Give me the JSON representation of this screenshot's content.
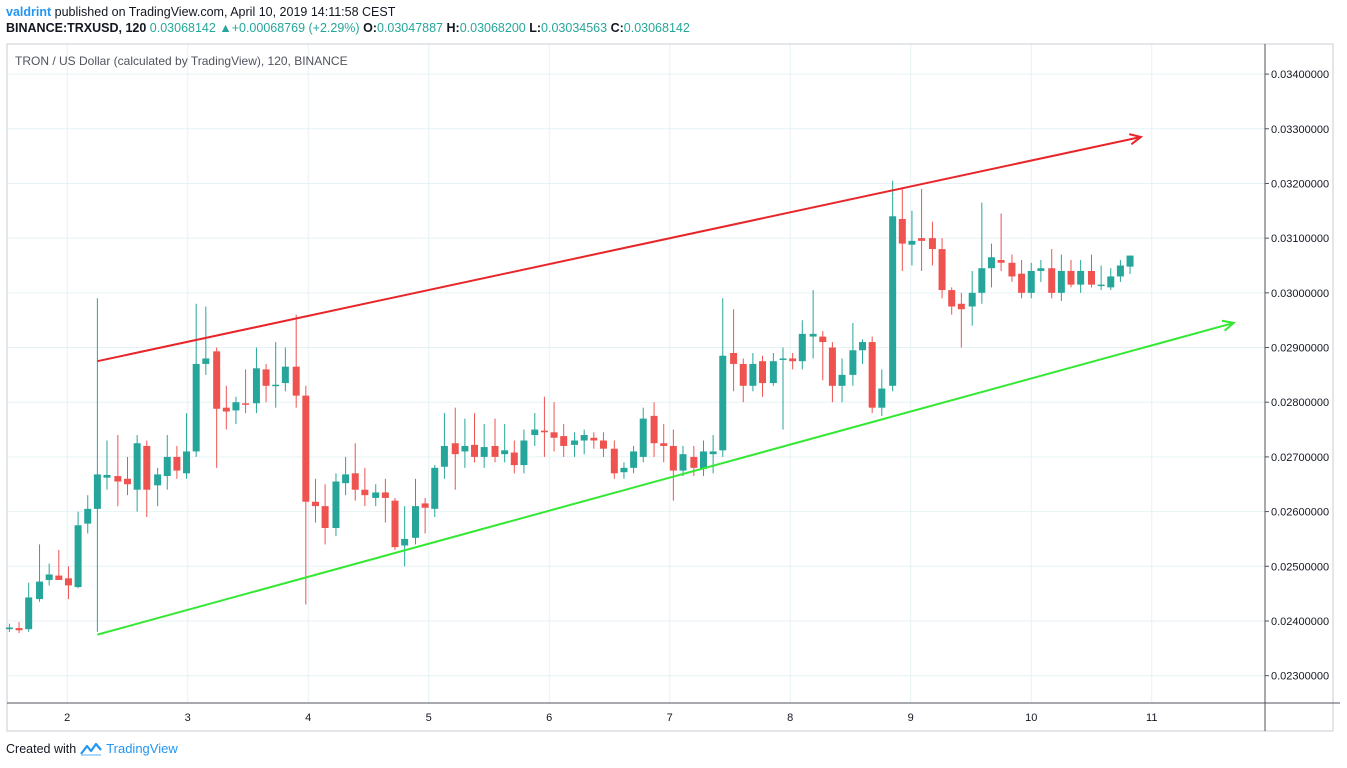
{
  "header": {
    "user": "valdrint",
    "published_text": "published on TradingView.com, April 10, 2019 14:11:58 CEST",
    "symbol": "BINANCE:TRXUSD, 120",
    "last": "0.03068142",
    "change_arrow": "▲",
    "change": "+0.00068769 (+2.29%)",
    "o_label": "O:",
    "o": "0.03047887",
    "h_label": "H:",
    "h": "0.03068200",
    "l_label": "L:",
    "l": "0.03034563",
    "c_label": "C:",
    "c": "0.03068142"
  },
  "footer": {
    "created_with": "Created with",
    "brand": "TradingView"
  },
  "colors": {
    "up": "#26a69a",
    "down": "#ef5350",
    "resistance": "#e8262a",
    "support": "#33e833",
    "grid": "#e6f2f5",
    "axis": "#50535e"
  },
  "chart_data": {
    "type": "candlestick",
    "title": "TRON / US Dollar (calculated by TradingView), 120, BINANCE",
    "x_ticks": [
      "2",
      "3",
      "4",
      "5",
      "6",
      "7",
      "8",
      "9",
      "10",
      "11"
    ],
    "y_ticks": [
      "0.03400000",
      "0.03300000",
      "0.03200000",
      "0.03100000",
      "0.03000000",
      "0.02900000",
      "0.02800000",
      "0.02700000",
      "0.02600000",
      "0.02500000",
      "0.02400000",
      "0.02300000"
    ],
    "xlim": [
      1.5,
      11.94
    ],
    "ylim": [
      0.0225,
      0.03455
    ],
    "grid": true,
    "candles": [
      {
        "t": 1.52,
        "o": 0.02385,
        "h": 0.02395,
        "l": 0.0238,
        "c": 0.02388
      },
      {
        "t": 1.6,
        "o": 0.02387,
        "h": 0.02398,
        "l": 0.02378,
        "c": 0.02383
      },
      {
        "t": 1.68,
        "o": 0.02385,
        "h": 0.0247,
        "l": 0.0238,
        "c": 0.02443
      },
      {
        "t": 1.77,
        "o": 0.0244,
        "h": 0.0254,
        "l": 0.02435,
        "c": 0.02472
      },
      {
        "t": 1.85,
        "o": 0.02475,
        "h": 0.02505,
        "l": 0.02465,
        "c": 0.02485
      },
      {
        "t": 1.93,
        "o": 0.02483,
        "h": 0.0253,
        "l": 0.02475,
        "c": 0.02475
      },
      {
        "t": 2.01,
        "o": 0.02478,
        "h": 0.025,
        "l": 0.0244,
        "c": 0.02465
      },
      {
        "t": 2.09,
        "o": 0.02462,
        "h": 0.026,
        "l": 0.0246,
        "c": 0.02575
      },
      {
        "t": 2.17,
        "o": 0.02578,
        "h": 0.0263,
        "l": 0.0256,
        "c": 0.02605
      },
      {
        "t": 2.25,
        "o": 0.02605,
        "h": 0.0299,
        "l": 0.0238,
        "c": 0.02668
      },
      {
        "t": 2.33,
        "o": 0.02662,
        "h": 0.0273,
        "l": 0.0264,
        "c": 0.02667
      },
      {
        "t": 2.42,
        "o": 0.02665,
        "h": 0.0274,
        "l": 0.0261,
        "c": 0.02655
      },
      {
        "t": 2.5,
        "o": 0.0266,
        "h": 0.027,
        "l": 0.0263,
        "c": 0.0265
      },
      {
        "t": 2.58,
        "o": 0.0264,
        "h": 0.0274,
        "l": 0.026,
        "c": 0.02725
      },
      {
        "t": 2.66,
        "o": 0.0272,
        "h": 0.0273,
        "l": 0.0259,
        "c": 0.0264
      },
      {
        "t": 2.75,
        "o": 0.02648,
        "h": 0.0268,
        "l": 0.0261,
        "c": 0.02668
      },
      {
        "t": 2.83,
        "o": 0.02665,
        "h": 0.0274,
        "l": 0.0264,
        "c": 0.027
      },
      {
        "t": 2.91,
        "o": 0.027,
        "h": 0.0272,
        "l": 0.0266,
        "c": 0.02675
      },
      {
        "t": 2.99,
        "o": 0.0267,
        "h": 0.0278,
        "l": 0.0266,
        "c": 0.0271
      },
      {
        "t": 3.07,
        "o": 0.0271,
        "h": 0.0298,
        "l": 0.027,
        "c": 0.0287
      },
      {
        "t": 3.15,
        "o": 0.0287,
        "h": 0.02975,
        "l": 0.0285,
        "c": 0.0288
      },
      {
        "t": 3.24,
        "o": 0.02893,
        "h": 0.029,
        "l": 0.0268,
        "c": 0.02788
      },
      {
        "t": 3.32,
        "o": 0.0279,
        "h": 0.0283,
        "l": 0.0275,
        "c": 0.02783
      },
      {
        "t": 3.4,
        "o": 0.02785,
        "h": 0.0281,
        "l": 0.0276,
        "c": 0.028
      },
      {
        "t": 3.48,
        "o": 0.02798,
        "h": 0.0286,
        "l": 0.0278,
        "c": 0.02797
      },
      {
        "t": 3.57,
        "o": 0.02798,
        "h": 0.029,
        "l": 0.0278,
        "c": 0.02862
      },
      {
        "t": 3.65,
        "o": 0.0286,
        "h": 0.0287,
        "l": 0.028,
        "c": 0.0283
      },
      {
        "t": 3.73,
        "o": 0.0283,
        "h": 0.0291,
        "l": 0.0279,
        "c": 0.02832
      },
      {
        "t": 3.81,
        "o": 0.02835,
        "h": 0.029,
        "l": 0.0282,
        "c": 0.02865
      },
      {
        "t": 3.9,
        "o": 0.02865,
        "h": 0.0296,
        "l": 0.0279,
        "c": 0.02812
      },
      {
        "t": 3.98,
        "o": 0.02812,
        "h": 0.0283,
        "l": 0.0243,
        "c": 0.02618
      },
      {
        "t": 4.06,
        "o": 0.02618,
        "h": 0.0266,
        "l": 0.0258,
        "c": 0.0261
      },
      {
        "t": 4.14,
        "o": 0.0261,
        "h": 0.0265,
        "l": 0.0254,
        "c": 0.0257
      },
      {
        "t": 4.23,
        "o": 0.0257,
        "h": 0.0267,
        "l": 0.02555,
        "c": 0.02655
      },
      {
        "t": 4.31,
        "o": 0.02652,
        "h": 0.027,
        "l": 0.0263,
        "c": 0.02668
      },
      {
        "t": 4.39,
        "o": 0.0267,
        "h": 0.02725,
        "l": 0.0262,
        "c": 0.0264
      },
      {
        "t": 4.47,
        "o": 0.0264,
        "h": 0.0268,
        "l": 0.0261,
        "c": 0.0263
      },
      {
        "t": 4.56,
        "o": 0.02625,
        "h": 0.0265,
        "l": 0.0261,
        "c": 0.02635
      },
      {
        "t": 4.64,
        "o": 0.02635,
        "h": 0.0266,
        "l": 0.0258,
        "c": 0.02625
      },
      {
        "t": 4.72,
        "o": 0.0262,
        "h": 0.02625,
        "l": 0.0253,
        "c": 0.02535
      },
      {
        "t": 4.8,
        "o": 0.02538,
        "h": 0.0261,
        "l": 0.025,
        "c": 0.0255
      },
      {
        "t": 4.89,
        "o": 0.02552,
        "h": 0.0266,
        "l": 0.0254,
        "c": 0.0261
      },
      {
        "t": 4.97,
        "o": 0.02615,
        "h": 0.02625,
        "l": 0.0256,
        "c": 0.02607
      },
      {
        "t": 5.05,
        "o": 0.02605,
        "h": 0.02685,
        "l": 0.0259,
        "c": 0.0268
      },
      {
        "t": 5.13,
        "o": 0.02682,
        "h": 0.0278,
        "l": 0.0266,
        "c": 0.0272
      },
      {
        "t": 5.22,
        "o": 0.02725,
        "h": 0.0279,
        "l": 0.0264,
        "c": 0.02705
      },
      {
        "t": 5.3,
        "o": 0.0271,
        "h": 0.0277,
        "l": 0.0268,
        "c": 0.0272
      },
      {
        "t": 5.38,
        "o": 0.02722,
        "h": 0.0278,
        "l": 0.0269,
        "c": 0.027
      },
      {
        "t": 5.46,
        "o": 0.027,
        "h": 0.0276,
        "l": 0.0268,
        "c": 0.02718
      },
      {
        "t": 5.55,
        "o": 0.0272,
        "h": 0.0277,
        "l": 0.0269,
        "c": 0.027
      },
      {
        "t": 5.63,
        "o": 0.02705,
        "h": 0.0276,
        "l": 0.0269,
        "c": 0.02712
      },
      {
        "t": 5.71,
        "o": 0.02708,
        "h": 0.0273,
        "l": 0.0267,
        "c": 0.02685
      },
      {
        "t": 5.79,
        "o": 0.02685,
        "h": 0.0275,
        "l": 0.0267,
        "c": 0.0273
      },
      {
        "t": 5.88,
        "o": 0.0274,
        "h": 0.0278,
        "l": 0.0272,
        "c": 0.0275
      },
      {
        "t": 5.96,
        "o": 0.02748,
        "h": 0.0281,
        "l": 0.027,
        "c": 0.02745
      },
      {
        "t": 6.04,
        "o": 0.02745,
        "h": 0.028,
        "l": 0.0271,
        "c": 0.02735
      },
      {
        "t": 6.12,
        "o": 0.02738,
        "h": 0.0276,
        "l": 0.027,
        "c": 0.0272
      },
      {
        "t": 6.21,
        "o": 0.02722,
        "h": 0.02745,
        "l": 0.027,
        "c": 0.0273
      },
      {
        "t": 6.29,
        "o": 0.0273,
        "h": 0.0275,
        "l": 0.02705,
        "c": 0.0274
      },
      {
        "t": 6.37,
        "o": 0.02735,
        "h": 0.02745,
        "l": 0.02715,
        "c": 0.0273
      },
      {
        "t": 6.45,
        "o": 0.0273,
        "h": 0.02745,
        "l": 0.027,
        "c": 0.02715
      },
      {
        "t": 6.54,
        "o": 0.02715,
        "h": 0.0273,
        "l": 0.0266,
        "c": 0.0267
      },
      {
        "t": 6.62,
        "o": 0.02672,
        "h": 0.0269,
        "l": 0.0266,
        "c": 0.0268
      },
      {
        "t": 6.7,
        "o": 0.0268,
        "h": 0.0272,
        "l": 0.0267,
        "c": 0.0271
      },
      {
        "t": 6.78,
        "o": 0.027,
        "h": 0.0279,
        "l": 0.0269,
        "c": 0.0277
      },
      {
        "t": 6.87,
        "o": 0.02775,
        "h": 0.028,
        "l": 0.027,
        "c": 0.02725
      },
      {
        "t": 6.95,
        "o": 0.02725,
        "h": 0.0276,
        "l": 0.0269,
        "c": 0.0272
      },
      {
        "t": 7.03,
        "o": 0.0272,
        "h": 0.0275,
        "l": 0.0262,
        "c": 0.02675
      },
      {
        "t": 7.11,
        "o": 0.02675,
        "h": 0.0272,
        "l": 0.02665,
        "c": 0.02705
      },
      {
        "t": 7.2,
        "o": 0.027,
        "h": 0.0272,
        "l": 0.02665,
        "c": 0.0268
      },
      {
        "t": 7.28,
        "o": 0.02678,
        "h": 0.0273,
        "l": 0.02665,
        "c": 0.0271
      },
      {
        "t": 7.36,
        "o": 0.02705,
        "h": 0.0274,
        "l": 0.0267,
        "c": 0.0271
      },
      {
        "t": 7.44,
        "o": 0.02712,
        "h": 0.0299,
        "l": 0.027,
        "c": 0.02885
      },
      {
        "t": 7.53,
        "o": 0.0289,
        "h": 0.0297,
        "l": 0.0282,
        "c": 0.0287
      },
      {
        "t": 7.61,
        "o": 0.0287,
        "h": 0.0288,
        "l": 0.028,
        "c": 0.0283
      },
      {
        "t": 7.69,
        "o": 0.0283,
        "h": 0.0289,
        "l": 0.0282,
        "c": 0.0287
      },
      {
        "t": 7.77,
        "o": 0.02875,
        "h": 0.02885,
        "l": 0.0281,
        "c": 0.02835
      },
      {
        "t": 7.86,
        "o": 0.02835,
        "h": 0.0289,
        "l": 0.0283,
        "c": 0.02875
      },
      {
        "t": 7.94,
        "o": 0.0288,
        "h": 0.029,
        "l": 0.0275,
        "c": 0.0288
      },
      {
        "t": 8.02,
        "o": 0.0288,
        "h": 0.0289,
        "l": 0.0286,
        "c": 0.02875
      },
      {
        "t": 8.1,
        "o": 0.02875,
        "h": 0.0295,
        "l": 0.0286,
        "c": 0.02925
      },
      {
        "t": 8.19,
        "o": 0.0292,
        "h": 0.03005,
        "l": 0.0288,
        "c": 0.02925
      },
      {
        "t": 8.27,
        "o": 0.0292,
        "h": 0.0293,
        "l": 0.0284,
        "c": 0.0291
      },
      {
        "t": 8.35,
        "o": 0.029,
        "h": 0.0291,
        "l": 0.028,
        "c": 0.0283
      },
      {
        "t": 8.43,
        "o": 0.0283,
        "h": 0.0288,
        "l": 0.028,
        "c": 0.0285
      },
      {
        "t": 8.52,
        "o": 0.0285,
        "h": 0.02945,
        "l": 0.0283,
        "c": 0.02895
      },
      {
        "t": 8.6,
        "o": 0.02895,
        "h": 0.02915,
        "l": 0.0287,
        "c": 0.0291
      },
      {
        "t": 8.68,
        "o": 0.0291,
        "h": 0.0292,
        "l": 0.0278,
        "c": 0.0279
      },
      {
        "t": 8.76,
        "o": 0.0279,
        "h": 0.0286,
        "l": 0.02775,
        "c": 0.02825
      },
      {
        "t": 8.85,
        "o": 0.0283,
        "h": 0.03205,
        "l": 0.0282,
        "c": 0.0314
      },
      {
        "t": 8.93,
        "o": 0.03135,
        "h": 0.0319,
        "l": 0.0304,
        "c": 0.0309
      },
      {
        "t": 9.01,
        "o": 0.03088,
        "h": 0.0315,
        "l": 0.0305,
        "c": 0.03095
      },
      {
        "t": 9.09,
        "o": 0.031,
        "h": 0.0319,
        "l": 0.0304,
        "c": 0.03095
      },
      {
        "t": 9.18,
        "o": 0.031,
        "h": 0.0313,
        "l": 0.0305,
        "c": 0.0308
      },
      {
        "t": 9.26,
        "o": 0.0308,
        "h": 0.031,
        "l": 0.0299,
        "c": 0.03005
      },
      {
        "t": 9.34,
        "o": 0.03005,
        "h": 0.0301,
        "l": 0.0296,
        "c": 0.02975
      },
      {
        "t": 9.42,
        "o": 0.0298,
        "h": 0.03,
        "l": 0.029,
        "c": 0.0297
      },
      {
        "t": 9.51,
        "o": 0.02975,
        "h": 0.0304,
        "l": 0.0294,
        "c": 0.03
      },
      {
        "t": 9.59,
        "o": 0.03,
        "h": 0.03165,
        "l": 0.0298,
        "c": 0.03045
      },
      {
        "t": 9.67,
        "o": 0.03045,
        "h": 0.0309,
        "l": 0.0301,
        "c": 0.03065
      },
      {
        "t": 9.75,
        "o": 0.0306,
        "h": 0.03145,
        "l": 0.0304,
        "c": 0.03055
      },
      {
        "t": 9.84,
        "o": 0.03055,
        "h": 0.0307,
        "l": 0.0302,
        "c": 0.0303
      },
      {
        "t": 9.92,
        "o": 0.03035,
        "h": 0.0306,
        "l": 0.0299,
        "c": 0.03
      },
      {
        "t": 10.0,
        "o": 0.03,
        "h": 0.03055,
        "l": 0.0299,
        "c": 0.0304
      },
      {
        "t": 10.08,
        "o": 0.0304,
        "h": 0.0306,
        "l": 0.0302,
        "c": 0.03045
      },
      {
        "t": 10.17,
        "o": 0.03045,
        "h": 0.0308,
        "l": 0.0299,
        "c": 0.03
      },
      {
        "t": 10.25,
        "o": 0.03,
        "h": 0.0307,
        "l": 0.02985,
        "c": 0.0304
      },
      {
        "t": 10.33,
        "o": 0.0304,
        "h": 0.0306,
        "l": 0.0301,
        "c": 0.03015
      },
      {
        "t": 10.41,
        "o": 0.03015,
        "h": 0.0306,
        "l": 0.03,
        "c": 0.0304
      },
      {
        "t": 10.5,
        "o": 0.0304,
        "h": 0.0307,
        "l": 0.0301,
        "c": 0.03015
      },
      {
        "t": 10.58,
        "o": 0.03015,
        "h": 0.0305,
        "l": 0.03005,
        "c": 0.03015
      },
      {
        "t": 10.66,
        "o": 0.0301,
        "h": 0.03045,
        "l": 0.03005,
        "c": 0.0303
      },
      {
        "t": 10.74,
        "o": 0.0303,
        "h": 0.0306,
        "l": 0.0302,
        "c": 0.0305
      },
      {
        "t": 10.82,
        "o": 0.03047887,
        "h": 0.030682,
        "l": 0.03034563,
        "c": 0.03068142
      }
    ],
    "trendlines": [
      {
        "name": "resistance",
        "color": "#e8262a",
        "arrow": true,
        "x1": 2.25,
        "y1": 0.02875,
        "x2": 10.91,
        "y2": 0.03285
      },
      {
        "name": "support",
        "color": "#33e833",
        "arrow": true,
        "x1": 2.25,
        "y1": 0.02375,
        "x2": 11.68,
        "y2": 0.02945
      }
    ]
  }
}
